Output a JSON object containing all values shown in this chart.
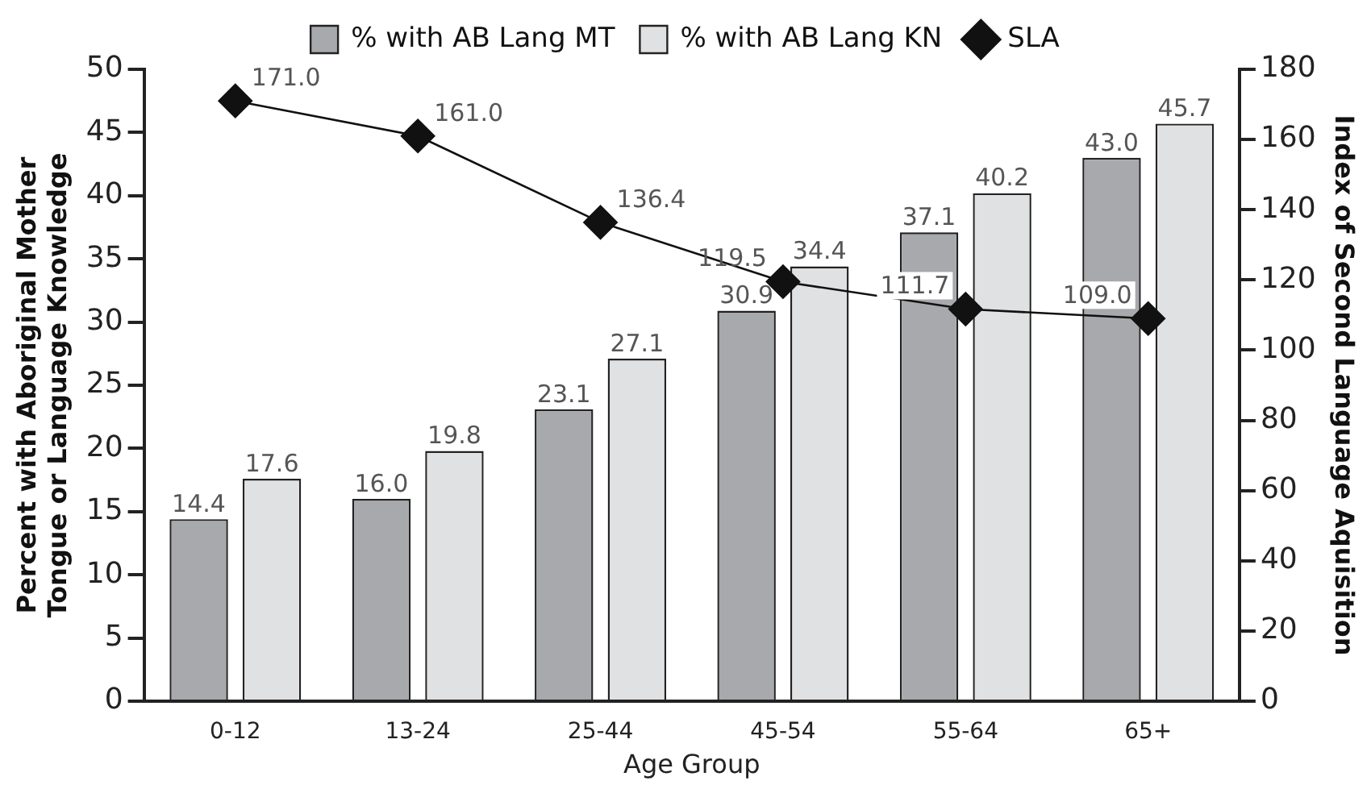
{
  "chart_data": {
    "type": "bar",
    "xlabel": "Age Group",
    "ylabel": "Percent with Aboriginal Mother Tongue or Language Knowledge",
    "y2label": "Index of Second Language Aquisition",
    "categories": [
      "0-12",
      "13-24",
      "25-44",
      "45-54",
      "55-64",
      "65+"
    ],
    "series": [
      {
        "name": "% with AB Lang MT",
        "color": "#a7a9ac",
        "values": [
          14.4,
          16.0,
          23.1,
          30.9,
          37.1,
          43.0
        ],
        "value_labels": [
          "14.4",
          "16.0",
          "23.1",
          "30.9",
          "37.1",
          "43.0"
        ]
      },
      {
        "name": "% with AB Lang KN",
        "color": "#e0e1e2",
        "values": [
          17.6,
          19.8,
          27.1,
          34.4,
          40.2,
          45.7
        ],
        "value_labels": [
          "17.6",
          "19.8",
          "27.1",
          "34.4",
          "40.2",
          "45.7"
        ]
      },
      {
        "name": "SLA",
        "type": "line",
        "axis": "y2",
        "color": "#111111",
        "values": [
          171.0,
          161.0,
          136.4,
          119.5,
          111.7,
          109.0
        ],
        "value_labels": [
          "171.0",
          "161.0",
          "136.4",
          "119.5",
          "111.7",
          "109.0"
        ]
      }
    ],
    "ylim": [
      0,
      50
    ],
    "yticks": [
      0,
      5,
      10,
      15,
      20,
      25,
      30,
      35,
      40,
      45,
      50
    ],
    "y2lim": [
      0,
      180
    ],
    "y2ticks": [
      0,
      20,
      40,
      60,
      80,
      100,
      120,
      140,
      160,
      180
    ],
    "grid": false,
    "legend": "top",
    "marker": "diamond",
    "line_style": "solid"
  }
}
